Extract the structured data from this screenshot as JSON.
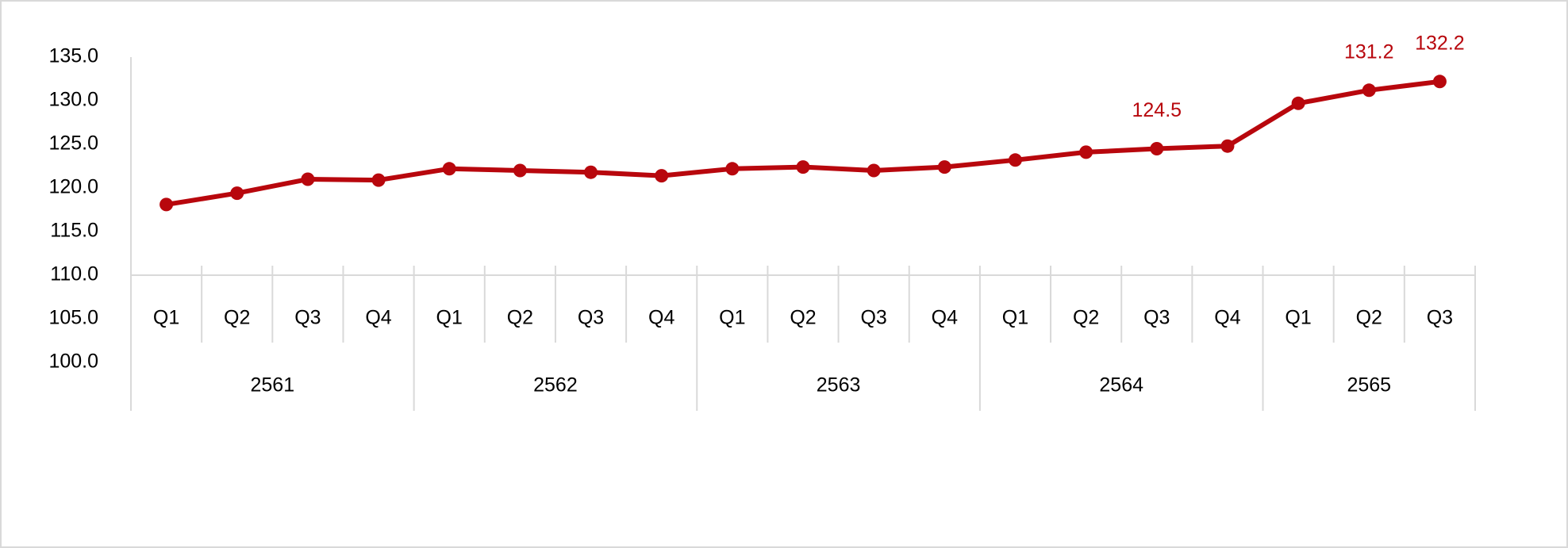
{
  "chart_data": {
    "type": "line",
    "groups": [
      {
        "name": "2561",
        "categories": [
          "Q1",
          "Q2",
          "Q3",
          "Q4"
        ]
      },
      {
        "name": "2562",
        "categories": [
          "Q1",
          "Q2",
          "Q3",
          "Q4"
        ]
      },
      {
        "name": "2563",
        "categories": [
          "Q1",
          "Q2",
          "Q3",
          "Q4"
        ]
      },
      {
        "name": "2564",
        "categories": [
          "Q1",
          "Q2",
          "Q3",
          "Q4"
        ]
      },
      {
        "name": "2565",
        "categories": [
          "Q1",
          "Q2",
          "Q3"
        ]
      }
    ],
    "series": [
      {
        "color": "#b8070d",
        "values": [
          118.1,
          119.4,
          121.0,
          120.9,
          122.2,
          122.0,
          121.8,
          121.4,
          122.2,
          122.4,
          122.0,
          122.4,
          123.2,
          124.1,
          124.5,
          124.8,
          129.7,
          131.2,
          132.2
        ],
        "value_labels": [
          null,
          null,
          null,
          null,
          null,
          null,
          null,
          null,
          null,
          null,
          null,
          null,
          null,
          null,
          "124.5",
          null,
          null,
          "131.2",
          "132.2"
        ]
      }
    ],
    "ylim": [
      100,
      135
    ],
    "yticks": [
      {
        "value": 100,
        "label": "100.0"
      },
      {
        "value": 105,
        "label": "105.0"
      },
      {
        "value": 110,
        "label": "110.0"
      },
      {
        "value": 115,
        "label": "115.0"
      },
      {
        "value": 120,
        "label": "120.0"
      },
      {
        "value": 125,
        "label": "125.0"
      },
      {
        "value": 130,
        "label": "130.0"
      },
      {
        "value": 135,
        "label": "135.0"
      }
    ],
    "x_axis_crossing": 110
  }
}
